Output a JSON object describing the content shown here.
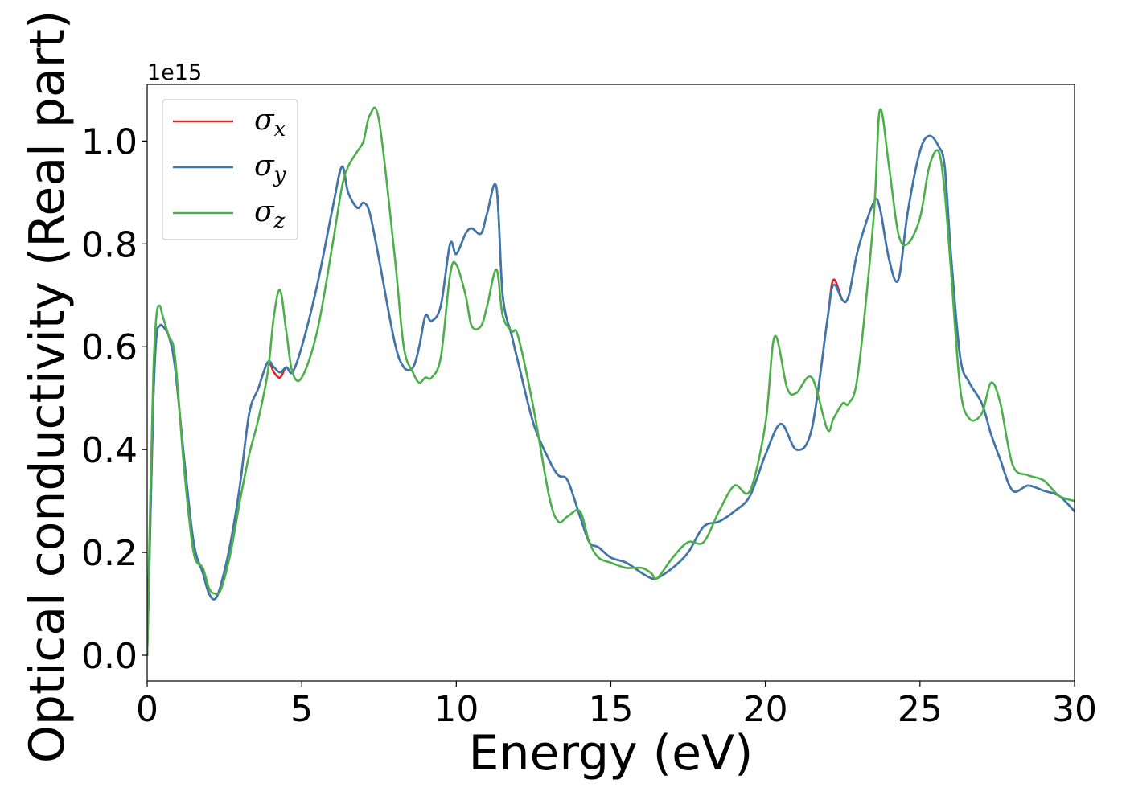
{
  "chart_data": {
    "type": "line",
    "xlabel": "Energy (eV)",
    "ylabel": "Optical conductivity (Real part)",
    "offset_text": "1e15",
    "xlim": [
      0,
      30
    ],
    "ylim": [
      -0.05,
      1.11
    ],
    "xticks": [
      0,
      5,
      10,
      15,
      20,
      25,
      30
    ],
    "xtick_labels": [
      "0",
      "5",
      "10",
      "15",
      "20",
      "25",
      "30"
    ],
    "yticks": [
      0.0,
      0.2,
      0.4,
      0.6,
      0.8,
      1.0
    ],
    "ytick_labels": [
      "0.0",
      "0.2",
      "0.4",
      "0.6",
      "0.8",
      "1.0"
    ],
    "legend_position": "top-left",
    "grid": false,
    "series": [
      {
        "name": "σx",
        "symbol": "σ",
        "subscript": "x",
        "color": "#d62728",
        "x": [
          0.0,
          0.1,
          0.2,
          0.3,
          0.4,
          0.5,
          0.7,
          0.9,
          1.2,
          1.5,
          1.8,
          2.0,
          2.2,
          2.4,
          2.7,
          3.0,
          3.3,
          3.6,
          3.9,
          4.1,
          4.3,
          4.5,
          4.7,
          5.0,
          5.5,
          6.0,
          6.3,
          6.5,
          6.8,
          7.0,
          7.2,
          7.5,
          8.0,
          8.3,
          8.6,
          8.8,
          9.0,
          9.2,
          9.5,
          9.8,
          10.0,
          10.3,
          10.5,
          10.8,
          11.0,
          11.3,
          11.5,
          11.8,
          12.0,
          12.5,
          13.0,
          13.3,
          13.6,
          14.0,
          14.3,
          14.6,
          15.0,
          15.5,
          16.0,
          16.3,
          16.5,
          17.0,
          17.5,
          18.0,
          18.5,
          19.0,
          19.5,
          20.0,
          20.5,
          21.0,
          21.5,
          22.0,
          22.2,
          22.5,
          22.7,
          23.0,
          23.5,
          23.7,
          24.0,
          24.3,
          24.6,
          25.0,
          25.3,
          25.6,
          25.8,
          26.0,
          26.3,
          26.6,
          27.0,
          27.3,
          27.6,
          28.0,
          28.5,
          29.0,
          29.5,
          30.0
        ],
        "y": [
          0.0,
          0.25,
          0.5,
          0.62,
          0.64,
          0.64,
          0.62,
          0.56,
          0.38,
          0.22,
          0.16,
          0.12,
          0.11,
          0.14,
          0.22,
          0.33,
          0.47,
          0.52,
          0.57,
          0.55,
          0.54,
          0.56,
          0.55,
          0.6,
          0.72,
          0.87,
          0.95,
          0.9,
          0.87,
          0.88,
          0.86,
          0.77,
          0.61,
          0.56,
          0.56,
          0.6,
          0.66,
          0.65,
          0.68,
          0.8,
          0.78,
          0.82,
          0.83,
          0.82,
          0.86,
          0.91,
          0.7,
          0.62,
          0.57,
          0.45,
          0.38,
          0.35,
          0.34,
          0.27,
          0.22,
          0.21,
          0.19,
          0.18,
          0.16,
          0.15,
          0.15,
          0.17,
          0.2,
          0.25,
          0.26,
          0.28,
          0.31,
          0.39,
          0.45,
          0.4,
          0.44,
          0.65,
          0.73,
          0.69,
          0.7,
          0.79,
          0.88,
          0.87,
          0.77,
          0.73,
          0.86,
          0.98,
          1.01,
          0.99,
          0.95,
          0.78,
          0.58,
          0.53,
          0.49,
          0.43,
          0.38,
          0.32,
          0.33,
          0.32,
          0.31,
          0.28
        ]
      },
      {
        "name": "σy",
        "symbol": "σ",
        "subscript": "y",
        "color": "#3a78b0",
        "x": [
          0.0,
          0.1,
          0.2,
          0.3,
          0.4,
          0.5,
          0.7,
          0.9,
          1.2,
          1.5,
          1.8,
          2.0,
          2.2,
          2.4,
          2.7,
          3.0,
          3.3,
          3.6,
          3.9,
          4.1,
          4.3,
          4.5,
          4.7,
          5.0,
          5.5,
          6.0,
          6.3,
          6.5,
          6.8,
          7.0,
          7.2,
          7.5,
          8.0,
          8.3,
          8.6,
          8.8,
          9.0,
          9.2,
          9.5,
          9.8,
          10.0,
          10.3,
          10.5,
          10.8,
          11.0,
          11.3,
          11.5,
          11.8,
          12.0,
          12.5,
          13.0,
          13.3,
          13.6,
          14.0,
          14.3,
          14.6,
          15.0,
          15.5,
          16.0,
          16.3,
          16.5,
          17.0,
          17.5,
          18.0,
          18.5,
          19.0,
          19.5,
          20.0,
          20.5,
          21.0,
          21.5,
          22.0,
          22.2,
          22.5,
          22.7,
          23.0,
          23.5,
          23.7,
          24.0,
          24.3,
          24.6,
          25.0,
          25.3,
          25.6,
          25.8,
          26.0,
          26.3,
          26.6,
          27.0,
          27.3,
          27.6,
          28.0,
          28.5,
          29.0,
          29.5,
          30.0
        ],
        "y": [
          0.0,
          0.25,
          0.5,
          0.62,
          0.64,
          0.64,
          0.62,
          0.56,
          0.38,
          0.22,
          0.16,
          0.12,
          0.11,
          0.14,
          0.22,
          0.33,
          0.47,
          0.52,
          0.57,
          0.56,
          0.55,
          0.56,
          0.55,
          0.6,
          0.72,
          0.87,
          0.95,
          0.9,
          0.87,
          0.88,
          0.86,
          0.77,
          0.61,
          0.56,
          0.56,
          0.6,
          0.66,
          0.65,
          0.68,
          0.8,
          0.78,
          0.82,
          0.83,
          0.82,
          0.86,
          0.91,
          0.7,
          0.62,
          0.57,
          0.45,
          0.38,
          0.35,
          0.34,
          0.27,
          0.22,
          0.21,
          0.19,
          0.18,
          0.16,
          0.15,
          0.15,
          0.17,
          0.2,
          0.25,
          0.26,
          0.28,
          0.31,
          0.39,
          0.45,
          0.4,
          0.44,
          0.65,
          0.72,
          0.69,
          0.7,
          0.79,
          0.88,
          0.87,
          0.77,
          0.73,
          0.86,
          0.98,
          1.01,
          0.99,
          0.95,
          0.78,
          0.58,
          0.53,
          0.49,
          0.43,
          0.38,
          0.32,
          0.33,
          0.32,
          0.31,
          0.28
        ]
      },
      {
        "name": "σz",
        "symbol": "σ",
        "subscript": "z",
        "color": "#4daf4a",
        "x": [
          0.0,
          0.1,
          0.2,
          0.3,
          0.4,
          0.5,
          0.7,
          0.9,
          1.2,
          1.5,
          1.8,
          2.0,
          2.2,
          2.4,
          2.7,
          3.0,
          3.3,
          3.6,
          3.9,
          4.1,
          4.3,
          4.5,
          4.7,
          5.0,
          5.5,
          6.0,
          6.3,
          6.5,
          6.8,
          7.0,
          7.2,
          7.5,
          8.0,
          8.3,
          8.6,
          8.8,
          9.0,
          9.2,
          9.5,
          9.8,
          10.0,
          10.3,
          10.5,
          10.8,
          11.0,
          11.3,
          11.5,
          11.8,
          12.0,
          12.5,
          13.0,
          13.3,
          13.6,
          14.0,
          14.3,
          14.6,
          15.0,
          15.5,
          16.0,
          16.3,
          16.5,
          17.0,
          17.5,
          18.0,
          18.5,
          19.0,
          19.5,
          20.0,
          20.3,
          20.7,
          21.0,
          21.5,
          22.0,
          22.2,
          22.5,
          22.7,
          23.0,
          23.5,
          23.7,
          24.0,
          24.3,
          24.6,
          25.0,
          25.3,
          25.6,
          25.8,
          26.0,
          26.3,
          26.6,
          27.0,
          27.3,
          27.6,
          28.0,
          28.5,
          29.0,
          29.5,
          30.0
        ],
        "y": [
          0.0,
          0.3,
          0.55,
          0.66,
          0.68,
          0.66,
          0.62,
          0.58,
          0.36,
          0.2,
          0.17,
          0.13,
          0.12,
          0.13,
          0.2,
          0.3,
          0.39,
          0.46,
          0.55,
          0.66,
          0.71,
          0.63,
          0.55,
          0.54,
          0.63,
          0.8,
          0.91,
          0.95,
          0.98,
          1.0,
          1.05,
          1.04,
          0.78,
          0.6,
          0.55,
          0.53,
          0.54,
          0.54,
          0.58,
          0.74,
          0.76,
          0.7,
          0.64,
          0.64,
          0.68,
          0.75,
          0.66,
          0.63,
          0.62,
          0.48,
          0.31,
          0.26,
          0.27,
          0.28,
          0.22,
          0.19,
          0.18,
          0.17,
          0.17,
          0.16,
          0.15,
          0.19,
          0.22,
          0.22,
          0.28,
          0.33,
          0.32,
          0.45,
          0.62,
          0.52,
          0.51,
          0.54,
          0.44,
          0.46,
          0.49,
          0.49,
          0.55,
          0.85,
          1.06,
          0.95,
          0.82,
          0.8,
          0.85,
          0.95,
          0.98,
          0.9,
          0.75,
          0.52,
          0.46,
          0.47,
          0.53,
          0.49,
          0.37,
          0.35,
          0.34,
          0.31,
          0.3
        ]
      }
    ]
  }
}
